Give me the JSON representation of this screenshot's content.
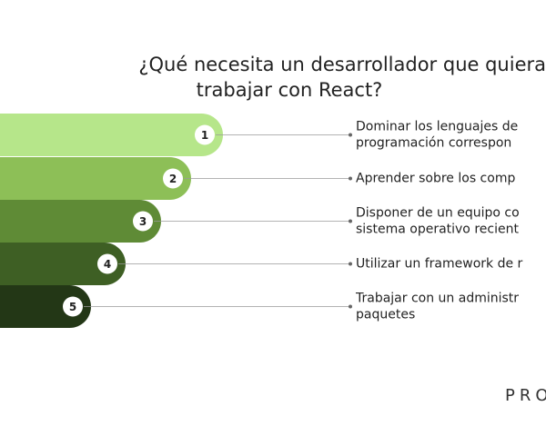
{
  "header": {
    "title": [
      "¿Qué necesita un desarrollador que quiera",
      "trabajar con React?"
    ]
  },
  "items": [
    {
      "number": "1",
      "lines": [
        "Dominar los lenguajes de",
        "programación correspon"
      ]
    },
    {
      "number": "2",
      "lines": [
        "Aprender sobre los comp"
      ]
    },
    {
      "number": "3",
      "lines": [
        "Disponer de un equipo co",
        "sistema operativo recient"
      ]
    },
    {
      "number": "4",
      "lines": [
        "Utilizar un framework de r"
      ]
    },
    {
      "number": "5",
      "lines": [
        "Trabajar con un administr",
        "paquetes"
      ]
    }
  ],
  "brand": "PRO"
}
